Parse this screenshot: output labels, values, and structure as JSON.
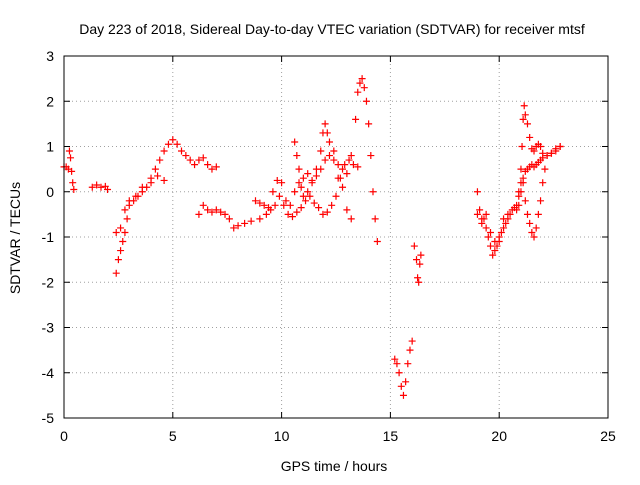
{
  "chart_data": {
    "type": "scatter",
    "title": "Day 223 of 2018, Sidereal Day-to-day VTEC variation (SDTVAR) for receiver mtsf",
    "xlabel": "GPS time / hours",
    "ylabel": "SDTVAR / TECUs",
    "xlim": [
      0,
      25
    ],
    "ylim": [
      -5,
      3
    ],
    "xticks": [
      0,
      5,
      10,
      15,
      20,
      25
    ],
    "yticks": [
      -5,
      -4,
      -3,
      -2,
      -1,
      0,
      1,
      2,
      3
    ],
    "xtick_labels": [
      "0",
      "5",
      "10",
      "15",
      "20",
      "25"
    ],
    "ytick_labels": [
      "-5",
      "-4",
      "-3",
      "-2",
      "-1",
      "0",
      "1",
      "2",
      "3"
    ],
    "grid": true,
    "marker": "+",
    "color": "#ff0000",
    "series": [
      {
        "name": "seg1",
        "points": [
          [
            0.0,
            0.55
          ],
          [
            0.1,
            0.55
          ],
          [
            0.2,
            0.5
          ],
          [
            0.25,
            0.9
          ],
          [
            0.3,
            0.75
          ],
          [
            0.35,
            0.45
          ],
          [
            0.4,
            0.2
          ],
          [
            0.45,
            0.05
          ]
        ]
      },
      {
        "name": "seg2",
        "points": [
          [
            1.3,
            0.1
          ],
          [
            1.5,
            0.15
          ],
          [
            1.7,
            0.1
          ],
          [
            1.9,
            0.12
          ],
          [
            2.0,
            0.05
          ]
        ]
      },
      {
        "name": "seg3",
        "points": [
          [
            2.4,
            -1.8
          ],
          [
            2.5,
            -1.5
          ],
          [
            2.6,
            -1.3
          ],
          [
            2.7,
            -1.1
          ],
          [
            2.8,
            -0.9
          ],
          [
            2.9,
            -0.6
          ],
          [
            3.0,
            -0.3
          ],
          [
            3.2,
            -0.2
          ],
          [
            3.4,
            -0.1
          ],
          [
            3.6,
            0.0
          ],
          [
            3.8,
            0.1
          ],
          [
            4.0,
            0.2
          ],
          [
            4.2,
            0.5
          ],
          [
            4.4,
            0.7
          ],
          [
            4.6,
            0.9
          ],
          [
            4.8,
            1.05
          ],
          [
            5.0,
            1.15
          ],
          [
            5.2,
            1.05
          ],
          [
            5.4,
            0.9
          ],
          [
            5.6,
            0.8
          ],
          [
            5.8,
            0.7
          ],
          [
            6.0,
            0.6
          ],
          [
            6.2,
            0.7
          ],
          [
            6.4,
            0.75
          ],
          [
            6.6,
            0.6
          ],
          [
            6.8,
            0.5
          ],
          [
            7.0,
            0.55
          ]
        ]
      },
      {
        "name": "seg4",
        "points": [
          [
            2.4,
            -0.9
          ],
          [
            2.6,
            -0.8
          ],
          [
            2.8,
            -0.4
          ],
          [
            3.0,
            -0.2
          ],
          [
            3.3,
            -0.1
          ],
          [
            3.6,
            0.1
          ],
          [
            4.0,
            0.3
          ],
          [
            4.3,
            0.35
          ],
          [
            4.6,
            0.25
          ]
        ]
      },
      {
        "name": "seg5",
        "points": [
          [
            6.2,
            -0.5
          ],
          [
            6.4,
            -0.3
          ],
          [
            6.6,
            -0.4
          ],
          [
            6.8,
            -0.45
          ],
          [
            7.0,
            -0.4
          ],
          [
            7.2,
            -0.45
          ],
          [
            7.4,
            -0.5
          ],
          [
            7.6,
            -0.6
          ],
          [
            7.8,
            -0.8
          ],
          [
            8.0,
            -0.75
          ],
          [
            8.3,
            -0.7
          ],
          [
            8.6,
            -0.65
          ],
          [
            9.0,
            -0.6
          ],
          [
            9.3,
            -0.5
          ],
          [
            9.5,
            -0.4
          ],
          [
            9.7,
            -0.3
          ],
          [
            9.9,
            -0.1
          ],
          [
            10.1,
            -0.3
          ],
          [
            10.3,
            -0.5
          ],
          [
            10.5,
            -0.55
          ],
          [
            10.7,
            -0.45
          ],
          [
            10.9,
            -0.35
          ],
          [
            11.1,
            -0.2
          ],
          [
            11.3,
            -0.1
          ],
          [
            11.5,
            -0.25
          ],
          [
            11.7,
            -0.35
          ],
          [
            11.9,
            -0.5
          ],
          [
            12.1,
            -0.45
          ],
          [
            12.3,
            -0.3
          ],
          [
            12.5,
            -0.1
          ],
          [
            12.7,
            0.3
          ],
          [
            12.9,
            0.6
          ],
          [
            13.1,
            0.7
          ],
          [
            13.3,
            0.6
          ],
          [
            13.5,
            0.55
          ]
        ]
      },
      {
        "name": "seg6",
        "points": [
          [
            8.8,
            -0.2
          ],
          [
            9.0,
            -0.25
          ],
          [
            9.2,
            -0.3
          ],
          [
            9.4,
            -0.35
          ],
          [
            9.6,
            0.0
          ],
          [
            9.8,
            0.25
          ],
          [
            10.0,
            0.2
          ],
          [
            10.2,
            -0.2
          ],
          [
            10.4,
            -0.3
          ],
          [
            10.6,
            0.0
          ],
          [
            10.8,
            0.2
          ],
          [
            11.0,
            0.3
          ],
          [
            11.2,
            0.4
          ],
          [
            11.4,
            0.25
          ],
          [
            11.6,
            0.35
          ],
          [
            11.8,
            0.5
          ],
          [
            12.0,
            0.7
          ],
          [
            12.2,
            0.8
          ],
          [
            12.4,
            0.9
          ],
          [
            12.6,
            0.6
          ],
          [
            12.8,
            0.5
          ],
          [
            13.0,
            0.4
          ],
          [
            13.2,
            0.8
          ],
          [
            13.4,
            1.6
          ],
          [
            13.5,
            2.2
          ],
          [
            13.6,
            2.4
          ],
          [
            13.7,
            2.5
          ],
          [
            13.8,
            2.3
          ],
          [
            13.9,
            2.0
          ],
          [
            14.0,
            1.5
          ],
          [
            14.1,
            0.8
          ],
          [
            14.2,
            0.0
          ],
          [
            14.3,
            -0.6
          ],
          [
            14.4,
            -1.1
          ]
        ]
      },
      {
        "name": "seg7",
        "points": [
          [
            10.6,
            1.1
          ],
          [
            10.7,
            0.8
          ],
          [
            10.8,
            0.5
          ],
          [
            10.9,
            0.1
          ],
          [
            11.0,
            -0.1
          ],
          [
            11.2,
            0.0
          ],
          [
            11.4,
            0.2
          ],
          [
            11.6,
            0.5
          ],
          [
            11.8,
            0.9
          ],
          [
            11.9,
            1.3
          ],
          [
            12.0,
            1.5
          ],
          [
            12.1,
            1.3
          ],
          [
            12.2,
            1.1
          ],
          [
            12.4,
            0.7
          ],
          [
            12.6,
            0.3
          ],
          [
            12.8,
            0.1
          ],
          [
            13.0,
            -0.4
          ],
          [
            13.2,
            -0.6
          ]
        ]
      },
      {
        "name": "seg8",
        "points": [
          [
            15.2,
            -3.7
          ],
          [
            15.3,
            -3.8
          ],
          [
            15.4,
            -4.0
          ],
          [
            15.5,
            -4.3
          ],
          [
            15.6,
            -4.5
          ],
          [
            15.7,
            -4.2
          ],
          [
            15.8,
            -3.8
          ],
          [
            15.9,
            -3.5
          ],
          [
            16.0,
            -3.3
          ]
        ]
      },
      {
        "name": "seg9",
        "points": [
          [
            16.1,
            -1.2
          ],
          [
            16.2,
            -1.5
          ],
          [
            16.25,
            -1.9
          ],
          [
            16.3,
            -2.0
          ],
          [
            16.35,
            -1.6
          ],
          [
            16.4,
            -1.4
          ]
        ]
      },
      {
        "name": "seg10",
        "points": [
          [
            19.0,
            0.0
          ],
          [
            19.1,
            -0.4
          ],
          [
            19.2,
            -0.7
          ],
          [
            19.3,
            -0.6
          ],
          [
            19.4,
            -0.8
          ],
          [
            19.5,
            -1.0
          ],
          [
            19.6,
            -1.2
          ],
          [
            19.7,
            -1.4
          ],
          [
            19.8,
            -1.3
          ],
          [
            19.9,
            -1.2
          ],
          [
            20.0,
            -1.1
          ],
          [
            20.1,
            -0.9
          ],
          [
            20.2,
            -0.8
          ],
          [
            20.3,
            -0.7
          ],
          [
            20.4,
            -0.6
          ],
          [
            20.5,
            -0.5
          ],
          [
            20.6,
            -0.4
          ],
          [
            20.7,
            -0.35
          ],
          [
            20.8,
            -0.3
          ],
          [
            20.9,
            0.0
          ],
          [
            21.0,
            0.2
          ],
          [
            21.1,
            0.3
          ],
          [
            21.2,
            0.45
          ],
          [
            21.3,
            0.5
          ],
          [
            21.4,
            0.55
          ],
          [
            21.5,
            0.6
          ],
          [
            21.6,
            0.55
          ],
          [
            21.7,
            0.6
          ],
          [
            21.8,
            0.65
          ],
          [
            21.9,
            0.7
          ],
          [
            22.0,
            0.75
          ],
          [
            22.2,
            0.8
          ],
          [
            22.4,
            0.85
          ],
          [
            22.6,
            0.9
          ],
          [
            22.8,
            1.0
          ]
        ]
      },
      {
        "name": "seg11",
        "points": [
          [
            19.0,
            -0.5
          ],
          [
            19.2,
            -0.6
          ],
          [
            19.4,
            -0.5
          ],
          [
            19.6,
            -0.9
          ],
          [
            19.8,
            -1.1
          ],
          [
            20.0,
            -1.0
          ],
          [
            20.2,
            -0.6
          ],
          [
            20.4,
            -0.5
          ]
        ]
      },
      {
        "name": "seg12",
        "points": [
          [
            20.8,
            -0.4
          ],
          [
            20.9,
            -0.1
          ],
          [
            21.0,
            0.5
          ],
          [
            21.05,
            1.0
          ],
          [
            21.1,
            1.6
          ],
          [
            21.15,
            1.9
          ],
          [
            21.2,
            1.7
          ],
          [
            21.3,
            1.5
          ],
          [
            21.4,
            1.2
          ],
          [
            21.5,
            0.95
          ],
          [
            21.6,
            0.9
          ],
          [
            21.7,
            1.0
          ],
          [
            21.8,
            1.05
          ],
          [
            21.9,
            1.0
          ],
          [
            22.0,
            0.85
          ],
          [
            22.2,
            0.8
          ],
          [
            22.4,
            0.85
          ],
          [
            22.6,
            0.95
          ],
          [
            22.8,
            1.0
          ]
        ]
      },
      {
        "name": "seg13",
        "points": [
          [
            20.9,
            -0.3
          ],
          [
            21.0,
            0.0
          ],
          [
            21.1,
            0.2
          ],
          [
            21.2,
            -0.2
          ],
          [
            21.3,
            -0.5
          ],
          [
            21.4,
            -0.7
          ],
          [
            21.5,
            -0.9
          ],
          [
            21.6,
            -1.0
          ],
          [
            21.7,
            -0.8
          ],
          [
            21.8,
            -0.5
          ],
          [
            21.9,
            -0.2
          ],
          [
            22.0,
            0.2
          ],
          [
            22.1,
            0.5
          ]
        ]
      }
    ]
  }
}
